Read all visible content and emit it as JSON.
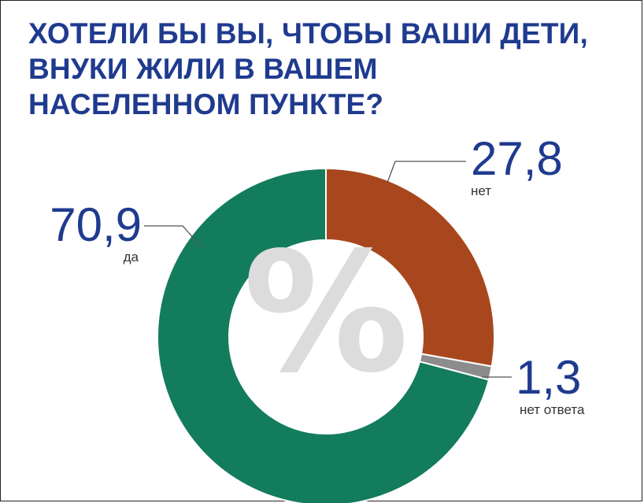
{
  "title_lines": [
    "ХОТЕЛИ БЫ ВЫ, ЧТОБЫ ВАШИ ДЕТИ,",
    "ВНУКИ ЖИЛИ В ВАШЕМ",
    "НАСЕЛЕННОМ ПУНКТЕ?"
  ],
  "center_symbol": "%",
  "colors": {
    "title": "#1f3b8f",
    "da": "#137c5d",
    "net": "#a8471d",
    "net_otveta": "#8c8c8c",
    "symbol": "#dcdcdc"
  },
  "chart_data": {
    "type": "pie",
    "donut": true,
    "title": "ХОТЕЛИ БЫ ВЫ, ЧТОБЫ ВАШИ ДЕТИ, ВНУКИ ЖИЛИ В ВАШЕМ НАСЕЛЕННОМ ПУНКТЕ?",
    "slices": [
      {
        "label": "нет",
        "value": 27.8,
        "display": "27,8",
        "color": "#a8471d"
      },
      {
        "label": "нет ответа",
        "value": 1.3,
        "display": "1,3",
        "color": "#8c8c8c"
      },
      {
        "label": "да",
        "value": 70.9,
        "display": "70,9",
        "color": "#137c5d"
      }
    ]
  }
}
